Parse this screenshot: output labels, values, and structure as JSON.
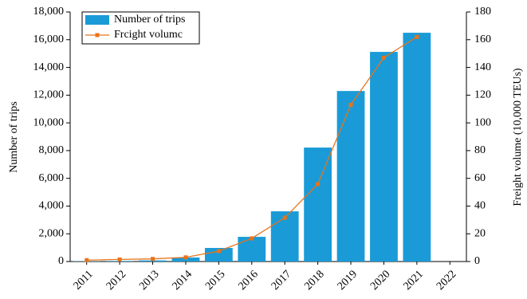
{
  "chart_data": {
    "type": "bar-line",
    "categories": [
      "2011",
      "2012",
      "2013",
      "2014",
      "2015",
      "2016",
      "2017",
      "2018",
      "2019",
      "2020",
      "2021",
      "2022"
    ],
    "series": [
      {
        "name": "Number of trips",
        "type": "bar",
        "color": "#1a9bd7",
        "values": [
          17,
          42,
          80,
          290,
          980,
          1780,
          3620,
          8220,
          12300,
          15120,
          16500,
          null
        ]
      },
      {
        "name": "Frcight volumc",
        "type": "line",
        "axis": "y2",
        "color": "#e8731a",
        "values": [
          1.0,
          1.5,
          1.9,
          3.0,
          7.5,
          16.7,
          31.6,
          55.8,
          113,
          147,
          162,
          null
        ]
      }
    ],
    "y_label": "Number of trips",
    "y2_label": "Freight volume (10,000 TEUs)",
    "ylim": [
      0,
      18000
    ],
    "yticks": [
      0,
      {
        "value": 2000,
        "label": "2,000"
      },
      {
        "value": 4000,
        "label": "4,000"
      },
      {
        "value": 6000,
        "label": "6,000"
      },
      {
        "value": 8000,
        "label": "8,000"
      },
      {
        "value": 10000,
        "label": "10,000"
      },
      {
        "value": 12000,
        "label": "12,000"
      },
      {
        "value": 14000,
        "label": "14,000"
      },
      {
        "value": 16000,
        "label": "16,000"
      },
      {
        "value": 18000,
        "label": "18,000"
      }
    ],
    "y2lim": [
      0,
      180
    ],
    "y2ticks": [
      0,
      20,
      40,
      60,
      80,
      100,
      120,
      140,
      160,
      180
    ],
    "legend": "upper-left"
  }
}
